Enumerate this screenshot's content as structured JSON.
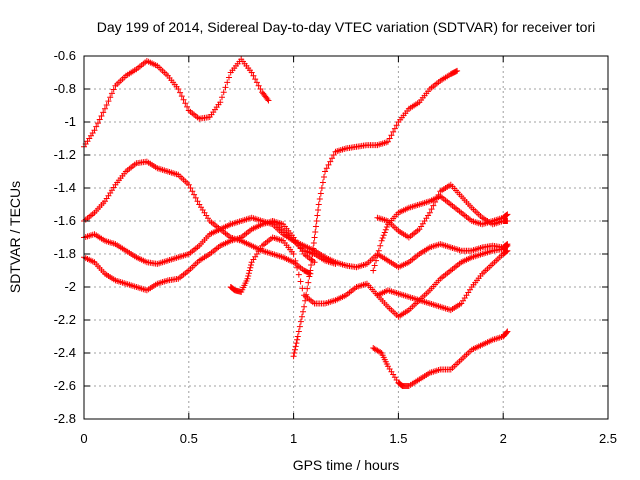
{
  "chart_data": {
    "type": "scatter",
    "title": "Day 199 of 2014, Sidereal Day-to-day VTEC variation (SDTVAR) for receiver tori",
    "xlabel": "GPS time / hours",
    "ylabel": "SDTVAR / TECUs",
    "xlim": [
      0,
      2.5
    ],
    "ylim": [
      -2.8,
      -0.6
    ],
    "xticks": [
      0,
      0.5,
      1,
      1.5,
      2,
      2.5
    ],
    "xtick_labels": [
      "0",
      "0.5",
      "1",
      "1.5",
      "2",
      "2.5"
    ],
    "yticks": [
      -2.8,
      -2.6,
      -2.4,
      -2.2,
      -2,
      -1.8,
      -1.6,
      -1.4,
      -1.2,
      -1,
      -0.8,
      -0.6
    ],
    "ytick_labels": [
      "-2.8",
      "-2.6",
      "-2.4",
      "-2.2",
      "-2",
      "-1.8",
      "-1.6",
      "-1.4",
      "-1.2",
      "-1",
      "-0.8",
      "-0.6"
    ],
    "grid": true,
    "marker": "+",
    "color": "#ff0000",
    "series": [
      {
        "x": [
          0,
          0.05,
          0.1,
          0.15,
          0.2,
          0.25,
          0.3,
          0.35,
          0.4,
          0.45,
          0.5,
          0.55,
          0.6,
          0.65,
          0.7,
          0.75,
          0.8,
          0.85,
          0.88
        ],
        "y": [
          -1.15,
          -1.05,
          -0.92,
          -0.78,
          -0.72,
          -0.68,
          -0.63,
          -0.66,
          -0.72,
          -0.8,
          -0.93,
          -0.98,
          -0.97,
          -0.88,
          -0.7,
          -0.62,
          -0.7,
          -0.82,
          -0.87
        ]
      },
      {
        "x": [
          0,
          0.05,
          0.1,
          0.15,
          0.2,
          0.25,
          0.3,
          0.35,
          0.4,
          0.45,
          0.5,
          0.55,
          0.6,
          0.65,
          0.7,
          0.75,
          0.8,
          0.85,
          0.9,
          0.95,
          1.0,
          1.05,
          1.08
        ],
        "y": [
          -1.6,
          -1.55,
          -1.48,
          -1.38,
          -1.3,
          -1.25,
          -1.24,
          -1.28,
          -1.3,
          -1.32,
          -1.38,
          -1.5,
          -1.6,
          -1.65,
          -1.7,
          -1.72,
          -1.75,
          -1.78,
          -1.8,
          -1.82,
          -1.85,
          -1.9,
          -1.92
        ]
      },
      {
        "x": [
          0,
          0.05,
          0.1,
          0.15,
          0.2,
          0.25,
          0.3,
          0.35,
          0.4,
          0.45,
          0.5,
          0.55,
          0.6,
          0.65,
          0.7,
          0.75,
          0.8,
          0.85,
          0.9,
          0.95,
          1.0,
          1.05,
          1.1
        ],
        "y": [
          -1.82,
          -1.85,
          -1.92,
          -1.96,
          -1.98,
          -2.0,
          -2.02,
          -1.98,
          -1.96,
          -1.95,
          -1.9,
          -1.84,
          -1.8,
          -1.75,
          -1.72,
          -1.7,
          -1.65,
          -1.62,
          -1.6,
          -1.62,
          -1.7,
          -1.8,
          -1.85
        ]
      },
      {
        "x": [
          0,
          0.05,
          0.1,
          0.15,
          0.2,
          0.25,
          0.3,
          0.35,
          0.4,
          0.45,
          0.5,
          0.55,
          0.6,
          0.65,
          0.7,
          0.75,
          0.8,
          0.85,
          0.9,
          0.95,
          1.0,
          1.05,
          1.1,
          1.15,
          1.2
        ],
        "y": [
          -1.7,
          -1.68,
          -1.72,
          -1.74,
          -1.78,
          -1.82,
          -1.85,
          -1.86,
          -1.84,
          -1.82,
          -1.8,
          -1.75,
          -1.68,
          -1.65,
          -1.62,
          -1.6,
          -1.58,
          -1.6,
          -1.62,
          -1.68,
          -1.72,
          -1.78,
          -1.8,
          -1.84,
          -1.86
        ]
      },
      {
        "x": [
          1.0,
          1.02,
          1.05,
          1.08,
          1.1,
          1.12,
          1.15,
          1.2,
          1.25,
          1.3,
          1.35,
          1.4,
          1.45,
          1.5,
          1.55,
          1.6,
          1.65,
          1.7,
          1.75,
          1.78
        ],
        "y": [
          -2.42,
          -2.3,
          -2.12,
          -1.9,
          -1.7,
          -1.5,
          -1.3,
          -1.18,
          -1.16,
          -1.15,
          -1.14,
          -1.14,
          -1.12,
          -1.0,
          -0.92,
          -0.88,
          -0.8,
          -0.75,
          -0.71,
          -0.69
        ]
      },
      {
        "x": [
          0.7,
          0.72,
          0.75,
          0.78,
          0.8,
          0.85,
          0.9,
          0.95,
          1.0,
          1.05,
          1.1,
          1.15,
          1.2,
          1.25,
          1.3,
          1.35,
          1.4,
          1.45,
          1.5,
          1.55,
          1.6,
          1.65,
          1.7,
          1.75,
          1.8,
          1.85,
          1.9,
          1.95,
          2.0,
          2.02
        ],
        "y": [
          -2.0,
          -2.02,
          -2.03,
          -1.95,
          -1.85,
          -1.75,
          -1.7,
          -1.72,
          -1.8,
          -2.05,
          -2.1,
          -2.1,
          -2.08,
          -2.05,
          -2.0,
          -1.98,
          -2.05,
          -2.12,
          -2.18,
          -2.14,
          -2.08,
          -2.02,
          -1.95,
          -1.9,
          -1.85,
          -1.82,
          -1.8,
          -1.78,
          -1.77,
          -1.75
        ]
      },
      {
        "x": [
          0.9,
          0.95,
          1.0,
          1.05,
          1.1,
          1.15,
          1.2,
          1.25,
          1.3,
          1.35,
          1.4,
          1.45,
          1.5,
          1.55,
          1.6,
          1.65,
          1.7,
          1.75,
          1.8,
          1.85,
          1.9,
          1.95,
          2.0,
          2.02
        ],
        "y": [
          -1.6,
          -1.66,
          -1.72,
          -1.75,
          -1.78,
          -1.82,
          -1.85,
          -1.87,
          -1.88,
          -1.86,
          -1.8,
          -1.84,
          -1.88,
          -1.85,
          -1.8,
          -1.76,
          -1.74,
          -1.76,
          -1.78,
          -1.78,
          -1.76,
          -1.75,
          -1.76,
          -1.74
        ]
      },
      {
        "x": [
          1.38,
          1.42,
          1.45,
          1.5,
          1.55,
          1.6,
          1.65,
          1.7,
          1.75,
          1.8,
          1.85,
          1.9,
          1.95,
          2.0,
          2.02
        ],
        "y": [
          -1.9,
          -1.72,
          -1.62,
          -1.55,
          -1.52,
          -1.5,
          -1.48,
          -1.45,
          -1.5,
          -1.55,
          -1.6,
          -1.62,
          -1.6,
          -1.58,
          -1.56
        ]
      },
      {
        "x": [
          1.4,
          1.45,
          1.5,
          1.55,
          1.6,
          1.65,
          1.7,
          1.75,
          1.8,
          1.85,
          1.9,
          1.95,
          2.0,
          2.02
        ],
        "y": [
          -1.58,
          -1.6,
          -1.66,
          -1.7,
          -1.65,
          -1.55,
          -1.42,
          -1.38,
          -1.45,
          -1.52,
          -1.58,
          -1.62,
          -1.6,
          -1.6
        ]
      },
      {
        "x": [
          1.4,
          1.45,
          1.5,
          1.55,
          1.6,
          1.65,
          1.7,
          1.75,
          1.8,
          1.85,
          1.9,
          1.95,
          2.0,
          2.02
        ],
        "y": [
          -2.05,
          -2.02,
          -2.04,
          -2.06,
          -2.08,
          -2.1,
          -2.12,
          -2.14,
          -2.1,
          -2.0,
          -1.92,
          -1.86,
          -1.8,
          -1.78
        ]
      },
      {
        "x": [
          1.38,
          1.42,
          1.45,
          1.5,
          1.52,
          1.55,
          1.6,
          1.65,
          1.7,
          1.75,
          1.8,
          1.85,
          1.9,
          1.95,
          2.0,
          2.02
        ],
        "y": [
          -2.37,
          -2.4,
          -2.48,
          -2.58,
          -2.6,
          -2.6,
          -2.56,
          -2.52,
          -2.5,
          -2.5,
          -2.44,
          -2.38,
          -2.35,
          -2.32,
          -2.3,
          -2.27
        ]
      }
    ]
  }
}
